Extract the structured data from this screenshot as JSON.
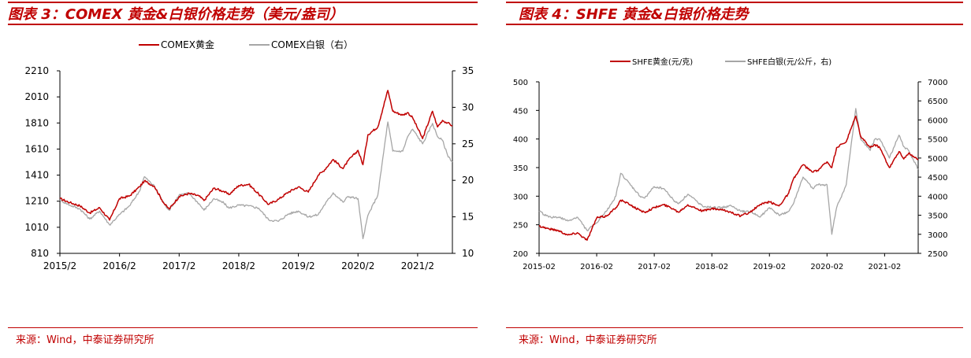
{
  "colors": {
    "accent": "#c00000",
    "gold": "#c00000",
    "silver": "#a6a6a6",
    "axis": "#000000"
  },
  "left_panel": {
    "title": "图表 3：COMEX 黄金&白银价格走势（美元/盎司）",
    "source": "来源：Wind，中泰证券研究所"
  },
  "right_panel": {
    "title": "图表 4：SHFE 黄金&白银价格走势",
    "source": "来源：Wind，中泰证券研究所"
  },
  "chart_data": [
    {
      "type": "line",
      "title": "",
      "legend_position": "top",
      "x_ticks": [
        "2015/2",
        "2016/2",
        "2017/2",
        "2018/2",
        "2019/2",
        "2020/2",
        "2021/2"
      ],
      "x_range": [
        "2015-02",
        "2021-09"
      ],
      "y_left": {
        "ticks": [
          810,
          1010,
          1210,
          1410,
          1610,
          1810,
          2010,
          2210
        ],
        "range": [
          810,
          2210
        ]
      },
      "y_right": {
        "ticks": [
          10,
          15,
          20,
          25,
          30,
          35
        ],
        "range": [
          10,
          35
        ]
      },
      "grid": false,
      "series": [
        {
          "name": "COMEX黄金",
          "axis": "left",
          "points": [
            [
              "2015-02",
              1230
            ],
            [
              "2015-04",
              1200
            ],
            [
              "2015-06",
              1175
            ],
            [
              "2015-08",
              1120
            ],
            [
              "2015-10",
              1160
            ],
            [
              "2015-12",
              1065
            ],
            [
              "2016-02",
              1230
            ],
            [
              "2016-04",
              1250
            ],
            [
              "2016-06",
              1320
            ],
            [
              "2016-07",
              1365
            ],
            [
              "2016-09",
              1325
            ],
            [
              "2016-11",
              1190
            ],
            [
              "2016-12",
              1150
            ],
            [
              "2017-02",
              1245
            ],
            [
              "2017-04",
              1270
            ],
            [
              "2017-06",
              1250
            ],
            [
              "2017-07",
              1215
            ],
            [
              "2017-09",
              1310
            ],
            [
              "2017-11",
              1285
            ],
            [
              "2017-12",
              1260
            ],
            [
              "2018-02",
              1330
            ],
            [
              "2018-04",
              1340
            ],
            [
              "2018-06",
              1265
            ],
            [
              "2018-08",
              1185
            ],
            [
              "2018-10",
              1225
            ],
            [
              "2018-12",
              1280
            ],
            [
              "2019-02",
              1320
            ],
            [
              "2019-04",
              1280
            ],
            [
              "2019-06",
              1410
            ],
            [
              "2019-07",
              1440
            ],
            [
              "2019-09",
              1530
            ],
            [
              "2019-11",
              1460
            ],
            [
              "2019-12",
              1520
            ],
            [
              "2020-02",
              1600
            ],
            [
              "2020-03",
              1490
            ],
            [
              "2020-04",
              1720
            ],
            [
              "2020-06",
              1780
            ],
            [
              "2020-08",
              2060
            ],
            [
              "2020-09",
              1900
            ],
            [
              "2020-11",
              1870
            ],
            [
              "2020-12",
              1890
            ],
            [
              "2021-01",
              1850
            ],
            [
              "2021-03",
              1690
            ],
            [
              "2021-05",
              1900
            ],
            [
              "2021-06",
              1780
            ],
            [
              "2021-07",
              1830
            ],
            [
              "2021-08",
              1810
            ],
            [
              "2021-09",
              1790
            ]
          ]
        },
        {
          "name": "COMEX白银（右）",
          "axis": "right",
          "points": [
            [
              "2015-02",
              17.3
            ],
            [
              "2015-04",
              16.6
            ],
            [
              "2015-06",
              16.1
            ],
            [
              "2015-08",
              14.7
            ],
            [
              "2015-10",
              15.8
            ],
            [
              "2015-12",
              13.9
            ],
            [
              "2016-02",
              15.3
            ],
            [
              "2016-04",
              16.5
            ],
            [
              "2016-06",
              18.5
            ],
            [
              "2016-07",
              20.5
            ],
            [
              "2016-09",
              19.2
            ],
            [
              "2016-11",
              16.8
            ],
            [
              "2016-12",
              15.9
            ],
            [
              "2017-02",
              18.0
            ],
            [
              "2017-04",
              18.2
            ],
            [
              "2017-06",
              16.8
            ],
            [
              "2017-07",
              15.9
            ],
            [
              "2017-09",
              17.5
            ],
            [
              "2017-11",
              16.9
            ],
            [
              "2017-12",
              16.2
            ],
            [
              "2018-02",
              16.6
            ],
            [
              "2018-04",
              16.5
            ],
            [
              "2018-06",
              16.2
            ],
            [
              "2018-08",
              14.6
            ],
            [
              "2018-10",
              14.4
            ],
            [
              "2018-12",
              15.4
            ],
            [
              "2019-02",
              15.8
            ],
            [
              "2019-04",
              15.0
            ],
            [
              "2019-06",
              15.3
            ],
            [
              "2019-07",
              16.4
            ],
            [
              "2019-09",
              18.3
            ],
            [
              "2019-11",
              17.0
            ],
            [
              "2019-12",
              17.8
            ],
            [
              "2020-02",
              17.5
            ],
            [
              "2020-03",
              12.0
            ],
            [
              "2020-04",
              15.2
            ],
            [
              "2020-06",
              18.0
            ],
            [
              "2020-08",
              28.0
            ],
            [
              "2020-09",
              24.0
            ],
            [
              "2020-11",
              24.0
            ],
            [
              "2020-12",
              26.0
            ],
            [
              "2021-01",
              27.0
            ],
            [
              "2021-03",
              25.0
            ],
            [
              "2021-05",
              27.8
            ],
            [
              "2021-06",
              26.0
            ],
            [
              "2021-07",
              25.5
            ],
            [
              "2021-08",
              23.5
            ],
            [
              "2021-09",
              22.5
            ]
          ]
        }
      ]
    },
    {
      "type": "line",
      "title": "",
      "legend_position": "top",
      "x_ticks": [
        "2015-02",
        "2016-02",
        "2017-02",
        "2018-02",
        "2019-02",
        "2020-02",
        "2021-02"
      ],
      "x_range": [
        "2015-02",
        "2021-09"
      ],
      "y_left": {
        "ticks": [
          200,
          250,
          300,
          350,
          400,
          450,
          500
        ],
        "range": [
          200,
          500
        ]
      },
      "y_right": {
        "ticks": [
          2500,
          3000,
          3500,
          4000,
          4500,
          5000,
          5500,
          6000,
          6500,
          7000
        ],
        "range": [
          2500,
          7000
        ]
      },
      "grid": false,
      "series": [
        {
          "name": "SHFE黄金(元/克)",
          "axis": "left",
          "points": [
            [
              "2015-02",
              248
            ],
            [
              "2015-04",
              243
            ],
            [
              "2015-06",
              240
            ],
            [
              "2015-08",
              232
            ],
            [
              "2015-10",
              236
            ],
            [
              "2015-12",
              223
            ],
            [
              "2016-02",
              262
            ],
            [
              "2016-04",
              265
            ],
            [
              "2016-06",
              280
            ],
            [
              "2016-07",
              293
            ],
            [
              "2016-09",
              285
            ],
            [
              "2016-11",
              275
            ],
            [
              "2016-12",
              272
            ],
            [
              "2017-02",
              280
            ],
            [
              "2017-04",
              285
            ],
            [
              "2017-06",
              278
            ],
            [
              "2017-07",
              272
            ],
            [
              "2017-09",
              285
            ],
            [
              "2017-11",
              278
            ],
            [
              "2017-12",
              274
            ],
            [
              "2018-02",
              278
            ],
            [
              "2018-04",
              276
            ],
            [
              "2018-06",
              272
            ],
            [
              "2018-08",
              265
            ],
            [
              "2018-10",
              272
            ],
            [
              "2018-12",
              285
            ],
            [
              "2019-02",
              290
            ],
            [
              "2019-04",
              283
            ],
            [
              "2019-06",
              305
            ],
            [
              "2019-07",
              330
            ],
            [
              "2019-09",
              355
            ],
            [
              "2019-11",
              342
            ],
            [
              "2019-12",
              345
            ],
            [
              "2020-02",
              360
            ],
            [
              "2020-03",
              350
            ],
            [
              "2020-04",
              385
            ],
            [
              "2020-06",
              395
            ],
            [
              "2020-08",
              440
            ],
            [
              "2020-09",
              405
            ],
            [
              "2020-11",
              385
            ],
            [
              "2020-12",
              390
            ],
            [
              "2021-01",
              385
            ],
            [
              "2021-03",
              350
            ],
            [
              "2021-05",
              378
            ],
            [
              "2021-06",
              365
            ],
            [
              "2021-07",
              375
            ],
            [
              "2021-08",
              370
            ],
            [
              "2021-09",
              365
            ]
          ]
        },
        {
          "name": "SHFE白银(元/公斤，右)",
          "axis": "right",
          "points": [
            [
              "2015-02",
              3600
            ],
            [
              "2015-04",
              3450
            ],
            [
              "2015-06",
              3450
            ],
            [
              "2015-08",
              3350
            ],
            [
              "2015-10",
              3450
            ],
            [
              "2015-12",
              3100
            ],
            [
              "2016-02",
              3300
            ],
            [
              "2016-04",
              3600
            ],
            [
              "2016-06",
              4000
            ],
            [
              "2016-07",
              4600
            ],
            [
              "2016-09",
              4300
            ],
            [
              "2016-11",
              4000
            ],
            [
              "2016-12",
              3950
            ],
            [
              "2017-02",
              4250
            ],
            [
              "2017-04",
              4200
            ],
            [
              "2017-06",
              3900
            ],
            [
              "2017-07",
              3800
            ],
            [
              "2017-09",
              4050
            ],
            [
              "2017-11",
              3850
            ],
            [
              "2017-12",
              3750
            ],
            [
              "2018-02",
              3700
            ],
            [
              "2018-04",
              3700
            ],
            [
              "2018-06",
              3750
            ],
            [
              "2018-08",
              3600
            ],
            [
              "2018-10",
              3600
            ],
            [
              "2018-12",
              3450
            ],
            [
              "2019-02",
              3700
            ],
            [
              "2019-04",
              3500
            ],
            [
              "2019-06",
              3600
            ],
            [
              "2019-07",
              3800
            ],
            [
              "2019-09",
              4500
            ],
            [
              "2019-11",
              4200
            ],
            [
              "2019-12",
              4300
            ],
            [
              "2020-02",
              4300
            ],
            [
              "2020-03",
              3000
            ],
            [
              "2020-04",
              3700
            ],
            [
              "2020-06",
              4300
            ],
            [
              "2020-08",
              6300
            ],
            [
              "2020-09",
              5500
            ],
            [
              "2020-11",
              5200
            ],
            [
              "2020-12",
              5500
            ],
            [
              "2021-01",
              5500
            ],
            [
              "2021-03",
              5000
            ],
            [
              "2021-05",
              5600
            ],
            [
              "2021-06",
              5300
            ],
            [
              "2021-07",
              5200
            ],
            [
              "2021-08",
              4950
            ],
            [
              "2021-09",
              4700
            ]
          ]
        }
      ]
    }
  ]
}
